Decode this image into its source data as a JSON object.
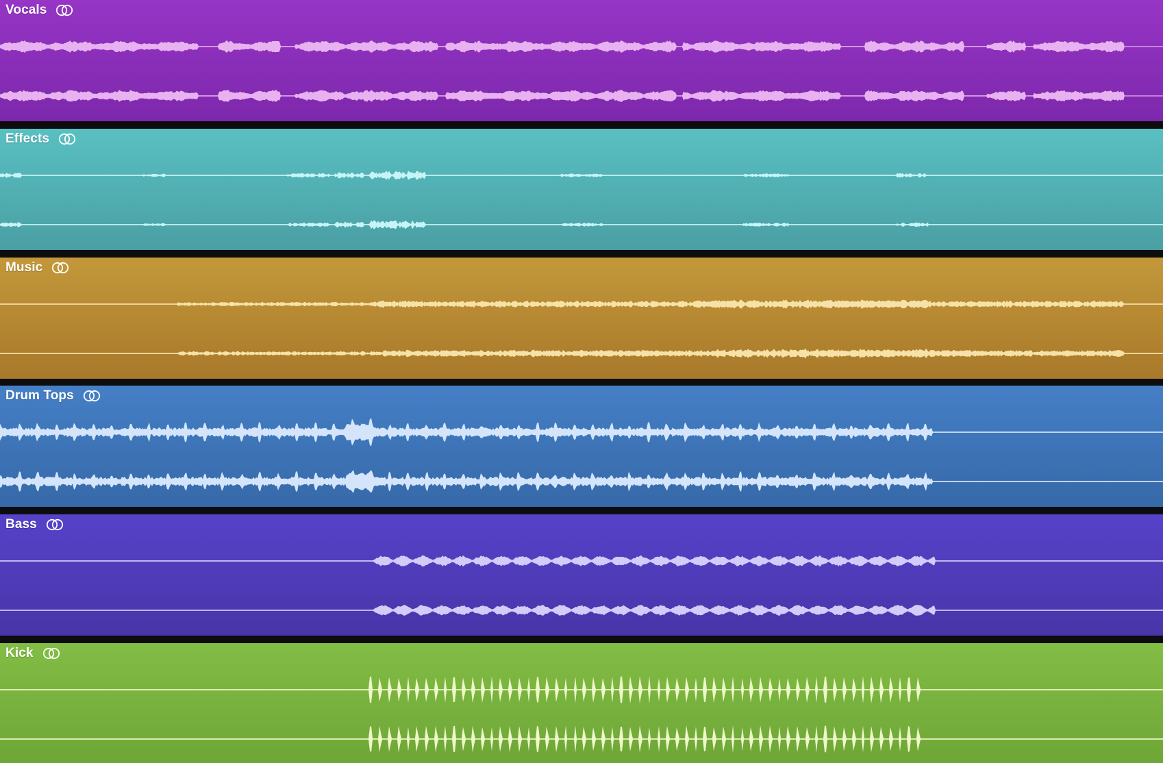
{
  "tracks": [
    {
      "name": "Vocals",
      "icon": "stereo-link-icon",
      "color_top": "#9635c6",
      "color_bottom": "#7d28ac",
      "wave_color": "#e8b2f0",
      "pattern": "vocal"
    },
    {
      "name": "Effects",
      "icon": "stereo-link-icon",
      "color_top": "#59c0c2",
      "color_bottom": "#4a9fa3",
      "wave_color": "#c7f4f6",
      "pattern": "sparse"
    },
    {
      "name": "Music",
      "icon": "stereo-link-icon",
      "color_top": "#c3983a",
      "color_bottom": "#a8792a",
      "wave_color": "#f6e2a8",
      "pattern": "music"
    },
    {
      "name": "Drum Tops",
      "icon": "stereo-link-icon",
      "color_top": "#457fc6",
      "color_bottom": "#3669a8",
      "wave_color": "#d4e5fb",
      "pattern": "drums"
    },
    {
      "name": "Bass",
      "icon": "stereo-link-icon",
      "color_top": "#5642c9",
      "color_bottom": "#4835a8",
      "wave_color": "#d2ccf8",
      "pattern": "bass"
    },
    {
      "name": "Kick",
      "icon": "stereo-link-icon",
      "color_top": "#82bd45",
      "color_bottom": "#6ea637",
      "wave_color": "#eef8c8",
      "pattern": "kick"
    }
  ]
}
